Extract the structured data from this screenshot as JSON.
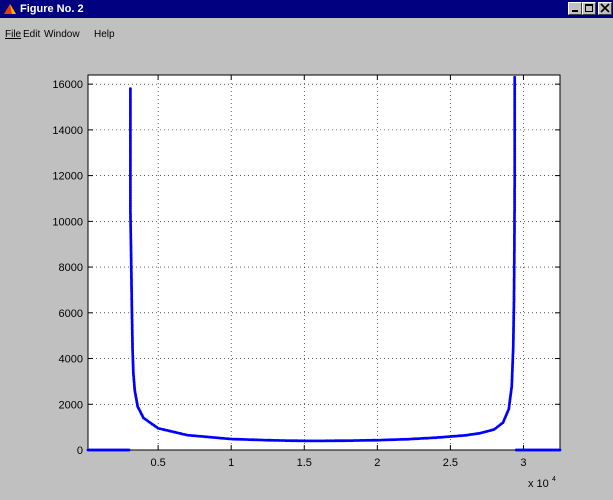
{
  "window": {
    "title": "Figure No. 2",
    "menu": [
      "File",
      "Edit",
      "Window",
      "Help"
    ]
  },
  "chart_data": {
    "type": "scatter",
    "color": "#0000ff",
    "xlim": [
      200,
      32500
    ],
    "ylim": [
      0,
      16400
    ],
    "x_exponent_label": "x 10",
    "x_exponent_sup": "4",
    "x_ticks": [
      {
        "value": 5000,
        "label": "0.5"
      },
      {
        "value": 10000,
        "label": "1"
      },
      {
        "value": 15000,
        "label": "1.5"
      },
      {
        "value": 20000,
        "label": "2"
      },
      {
        "value": 25000,
        "label": "2.5"
      },
      {
        "value": 30000,
        "label": "3"
      }
    ],
    "y_ticks": [
      0,
      2000,
      4000,
      6000,
      8000,
      10000,
      12000,
      14000,
      16000
    ],
    "grid": true,
    "series": [
      {
        "x_start": 3100,
        "x_end": 29400,
        "description_points": [
          [
            3100,
            15800
          ],
          [
            3100,
            13000
          ],
          [
            3100,
            10500
          ],
          [
            3150,
            8500
          ],
          [
            3200,
            6300
          ],
          [
            3250,
            4400
          ],
          [
            3300,
            3400
          ],
          [
            3400,
            2600
          ],
          [
            3600,
            1900
          ],
          [
            4000,
            1400
          ],
          [
            5000,
            950
          ],
          [
            7000,
            650
          ],
          [
            10000,
            480
          ],
          [
            13000,
            420
          ],
          [
            15000,
            400
          ],
          [
            16400,
            400
          ],
          [
            18000,
            410
          ],
          [
            20000,
            430
          ],
          [
            22000,
            470
          ],
          [
            24000,
            540
          ],
          [
            26000,
            640
          ],
          [
            27000,
            730
          ],
          [
            28000,
            900
          ],
          [
            28600,
            1200
          ],
          [
            29000,
            1800
          ],
          [
            29200,
            2800
          ],
          [
            29300,
            4500
          ],
          [
            29350,
            6500
          ],
          [
            29380,
            9000
          ],
          [
            29400,
            12000
          ],
          [
            29400,
            14500
          ],
          [
            29400,
            16300
          ]
        ],
        "zero_left": [
          200,
          3050
        ],
        "zero_right": [
          29500,
          32500
        ]
      }
    ]
  }
}
